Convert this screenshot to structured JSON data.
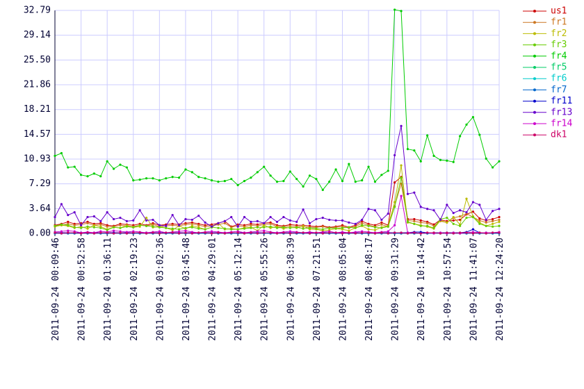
{
  "chart_data": {
    "type": "line",
    "grid": true,
    "legend": "right",
    "categories": [
      "2011-09-24 00:09:46",
      null,
      null,
      null,
      "2011-09-24 00:52:58",
      null,
      null,
      null,
      "2011-09-24 01:36:11",
      null,
      null,
      null,
      "2011-09-24 02:19:23",
      null,
      null,
      null,
      "2011-09-24 03:02:36",
      null,
      null,
      null,
      "2011-09-24 03:45:48",
      null,
      null,
      null,
      "2011-09-24 04:29:01",
      null,
      null,
      null,
      "2011-09-24 05:12:14",
      null,
      null,
      null,
      "2011-09-24 05:55:26",
      null,
      null,
      null,
      "2011-09-24 06:38:39",
      null,
      null,
      null,
      "2011-09-24 07:21:51",
      null,
      null,
      null,
      "2011-09-24 08:05:04",
      null,
      null,
      null,
      "2011-09-24 08:48:17",
      null,
      null,
      null,
      "2011-09-24 09:31:29",
      null,
      null,
      null,
      "2011-09-24 10:14:42",
      null,
      null,
      null,
      "2011-09-24 10:57:54",
      null,
      null,
      null,
      "2011-09-24 11:41:07",
      null,
      null,
      null,
      "2011-09-24 12:24:20"
    ],
    "ylim": [
      0,
      32.79
    ],
    "yticks": [
      {
        "value": 0,
        "label": "0.00"
      },
      3.64,
      7.29,
      10.93,
      14.57,
      18.21,
      21.86,
      {
        "value": 25.5,
        "label": "25.50"
      },
      29.14,
      32.79
    ],
    "series": [
      {
        "name": "us1",
        "color": "#cc0000",
        "values": [
          1.2,
          1.4,
          1.7,
          1.4,
          1.5,
          1.7,
          1.4,
          1.5,
          1.2,
          1.1,
          1.4,
          1.3,
          1.2,
          1.4,
          1.2,
          1.5,
          1.2,
          1.3,
          1.4,
          1.3,
          1.5,
          1.6,
          1.4,
          1.2,
          1.3,
          1.5,
          1.8,
          1.0,
          1.3,
          1.2,
          1.4,
          1.3,
          1.5,
          1.6,
          1.2,
          1.1,
          1.3,
          1.2,
          1.2,
          1.1,
          1.0,
          1.1,
          0.9,
          1.0,
          1.2,
          0.9,
          1.2,
          1.8,
          1.4,
          1.2,
          1.6,
          1.2,
          7.5,
          8.3,
          2.1,
          2.1,
          1.9,
          1.7,
          1.3,
          2.0,
          1.8,
          1.9,
          2.0,
          2.8,
          3.2,
          2.2,
          1.9,
          2.1,
          2.4
        ]
      },
      {
        "name": "fr1",
        "color": "#cc7722",
        "values": [
          1.1,
          1.2,
          1.4,
          1.2,
          1.3,
          1.5,
          1.2,
          1.3,
          1.0,
          1.0,
          1.2,
          1.1,
          1.0,
          1.2,
          1.1,
          1.3,
          1.0,
          1.1,
          1.2,
          1.1,
          1.3,
          1.4,
          1.2,
          1.0,
          1.1,
          1.3,
          1.5,
          0.9,
          1.1,
          1.0,
          1.2,
          1.1,
          1.3,
          1.4,
          1.0,
          1.0,
          1.1,
          1.0,
          1.0,
          0.9,
          0.9,
          1.0,
          0.8,
          0.9,
          1.0,
          0.8,
          1.0,
          1.5,
          1.2,
          1.0,
          1.3,
          1.0,
          4.0,
          7.3,
          1.9,
          1.8,
          1.6,
          1.5,
          1.1,
          1.8,
          1.6,
          2.3,
          2.5,
          2.9,
          2.4,
          1.9,
          1.6,
          1.8,
          2.0
        ]
      },
      {
        "name": "fr2",
        "color": "#bbbb00",
        "values": [
          1.0,
          1.2,
          1.1,
          0.8,
          1.0,
          0.7,
          1.2,
          1.0,
          0.6,
          0.9,
          0.8,
          1.2,
          0.9,
          1.0,
          2.3,
          0.9,
          1.0,
          0.8,
          0.5,
          1.1,
          0.7,
          1.1,
          0.9,
          0.6,
          0.9,
          1.5,
          0.6,
          0.7,
          0.6,
          0.8,
          0.9,
          0.4,
          1.2,
          0.8,
          1.0,
          0.7,
          0.9,
          0.8,
          1.1,
          0.6,
          0.6,
          0.4,
          0.5,
          0.7,
          0.6,
          0.4,
          0.8,
          1.1,
          0.6,
          0.5,
          0.9,
          1.1,
          4.6,
          10.0,
          1.6,
          1.4,
          1.2,
          1.0,
          0.7,
          1.9,
          1.6,
          2.4,
          1.3,
          5.1,
          2.5,
          1.6,
          1.1,
          1.4,
          1.7
        ]
      },
      {
        "name": "fr3",
        "color": "#66cc00",
        "values": [
          1.1,
          1.3,
          1.2,
          0.9,
          0.8,
          1.0,
          0.9,
          0.8,
          0.5,
          0.9,
          0.8,
          1.0,
          0.9,
          1.2,
          1.1,
          1.0,
          0.9,
          0.8,
          0.7,
          0.6,
          0.8,
          0.9,
          0.7,
          0.6,
          0.9,
          0.8,
          0.7,
          0.6,
          0.6,
          0.7,
          0.8,
          0.9,
          0.9,
          1.0,
          0.8,
          0.9,
          0.8,
          0.9,
          0.7,
          0.8,
          0.7,
          0.6,
          0.8,
          0.7,
          0.8,
          0.9,
          0.8,
          1.2,
          1.1,
          0.9,
          0.8,
          1.0,
          3.9,
          8.2,
          1.7,
          1.4,
          1.1,
          1.1,
          0.8,
          2.1,
          2.3,
          1.4,
          1.1,
          2.3,
          2.4,
          1.4,
          1.1,
          1.0,
          1.1
        ]
      },
      {
        "name": "fr4",
        "color": "#00cc00",
        "values": [
          11.4,
          11.8,
          9.7,
          9.8,
          8.6,
          8.4,
          8.8,
          8.4,
          10.6,
          9.5,
          10.1,
          9.7,
          7.8,
          7.9,
          8.1,
          8.1,
          7.8,
          8.1,
          8.3,
          8.2,
          9.4,
          9.0,
          8.3,
          8.1,
          7.8,
          7.6,
          7.7,
          8.0,
          7.1,
          7.7,
          8.2,
          9.0,
          9.8,
          8.5,
          7.6,
          7.7,
          9.1,
          8.0,
          6.9,
          8.5,
          8.0,
          6.4,
          7.6,
          9.4,
          7.7,
          10.2,
          7.6,
          7.8,
          9.8,
          7.6,
          8.6,
          9.2,
          32.9,
          32.7,
          12.4,
          12.2,
          10.6,
          14.4,
          11.4,
          10.8,
          10.7,
          10.5,
          14.3,
          16.0,
          17.1,
          14.5,
          11.0,
          9.7,
          10.6
        ]
      },
      {
        "name": "fr5",
        "color": "#00cc66",
        "values": [
          0.0,
          0.1,
          0.0,
          0.0,
          0.1,
          0.0,
          0.0,
          0.0,
          0.1,
          0.0,
          0.0,
          0.1,
          0.0,
          0.0,
          0.1,
          0.0,
          0.0,
          0.0,
          0.1,
          0.0,
          0.0,
          0.1,
          0.0,
          0.0,
          0.1,
          0.0,
          0.0,
          0.0,
          0.1,
          0.0,
          0.0,
          0.1,
          0.0,
          0.0,
          0.1,
          0.0,
          0.0,
          0.0,
          0.1,
          0.0,
          0.0,
          0.1,
          0.0,
          0.0,
          0.1,
          0.0,
          0.0,
          0.0,
          0.1,
          0.0,
          0.0,
          0.1,
          0.0,
          0.0,
          0.1,
          0.0,
          0.0,
          0.0,
          0.1,
          0.0,
          0.0,
          0.1,
          0.0,
          0.0,
          0.1,
          0.0,
          0.0,
          0.0,
          0.1
        ]
      },
      {
        "name": "fr6",
        "color": "#00cccc",
        "values": [
          0.0,
          0.0,
          0.1,
          0.0,
          0.0,
          0.0,
          0.1,
          0.0,
          0.0,
          0.0,
          0.0,
          0.0,
          0.1,
          0.0,
          0.0,
          0.0,
          0.1,
          0.0,
          0.0,
          0.0,
          0.0,
          0.0,
          0.1,
          0.0,
          0.0,
          0.0,
          0.1,
          0.0,
          0.0,
          0.0,
          0.0,
          0.0,
          0.1,
          0.0,
          0.0,
          0.0,
          0.1,
          0.0,
          0.0,
          0.0,
          0.0,
          0.0,
          0.1,
          0.0,
          0.0,
          0.0,
          0.1,
          0.0,
          0.0,
          0.0,
          0.0,
          0.0,
          0.1,
          0.0,
          0.0,
          0.0,
          0.1,
          0.0,
          0.0,
          0.0,
          0.0,
          0.0,
          0.1,
          0.0,
          0.0,
          0.0,
          0.1,
          0.0,
          0.0
        ]
      },
      {
        "name": "fr7",
        "color": "#0066cc",
        "values": [
          0.0,
          0.0,
          0.0,
          0.0,
          0.0,
          0.0,
          0.0,
          0.0,
          0.0,
          0.0,
          0.0,
          0.0,
          0.0,
          0.0,
          0.0,
          0.0,
          0.0,
          0.0,
          0.0,
          0.0,
          0.0,
          0.0,
          0.0,
          0.0,
          0.0,
          0.0,
          0.0,
          0.0,
          0.0,
          0.0,
          0.0,
          0.0,
          0.0,
          0.0,
          0.0,
          0.0,
          0.0,
          0.0,
          0.0,
          0.0,
          0.0,
          0.0,
          0.0,
          0.0,
          0.0,
          0.0,
          0.0,
          0.0,
          0.0,
          0.0,
          0.0,
          0.0,
          0.0,
          0.0,
          0.0,
          0.0,
          0.0,
          0.0,
          0.0,
          0.0,
          0.0,
          0.0,
          0.0,
          0.0,
          0.0,
          0.0,
          0.0,
          0.0,
          0.0
        ]
      },
      {
        "name": "fr11",
        "color": "#0000cc",
        "values": [
          0.1,
          0.1,
          0.1,
          0.1,
          0.1,
          0.1,
          0.1,
          0.1,
          0.1,
          0.1,
          0.1,
          0.1,
          0.1,
          0.1,
          0.1,
          0.1,
          0.1,
          0.1,
          0.1,
          0.1,
          0.1,
          0.1,
          0.1,
          0.1,
          0.1,
          0.1,
          0.1,
          0.1,
          0.1,
          0.1,
          0.1,
          0.1,
          0.1,
          0.1,
          0.1,
          0.1,
          0.1,
          0.1,
          0.1,
          0.1,
          0.1,
          0.1,
          0.1,
          0.1,
          0.1,
          0.1,
          0.1,
          0.1,
          0.1,
          0.1,
          0.1,
          0.1,
          0.1,
          0.1,
          0.1,
          0.2,
          0.2,
          0.1,
          0.1,
          0.1,
          0.1,
          0.1,
          0.1,
          0.2,
          0.6,
          0.1,
          0.1,
          0.1,
          0.1
        ]
      },
      {
        "name": "fr13",
        "color": "#6600cc",
        "values": [
          2.4,
          4.3,
          2.7,
          3.1,
          1.2,
          2.4,
          2.5,
          1.8,
          3.1,
          2.1,
          2.3,
          1.8,
          1.9,
          3.4,
          1.9,
          2.0,
          1.2,
          1.1,
          2.7,
          1.2,
          2.1,
          2.0,
          2.6,
          1.6,
          1.0,
          1.5,
          1.8,
          2.4,
          1.0,
          2.4,
          1.7,
          1.8,
          1.5,
          2.4,
          1.7,
          2.4,
          1.9,
          1.7,
          3.5,
          1.5,
          2.1,
          2.3,
          2.0,
          1.9,
          1.9,
          1.6,
          1.4,
          2.0,
          3.6,
          3.4,
          2.0,
          2.9,
          11.5,
          15.8,
          5.8,
          6.0,
          3.9,
          3.6,
          3.4,
          2.0,
          4.2,
          3.0,
          3.4,
          3.1,
          4.6,
          4.2,
          2.0,
          3.3,
          3.6
        ]
      },
      {
        "name": "fr14",
        "color": "#cc00cc",
        "values": [
          0.2,
          0.3,
          0.4,
          0.3,
          0.1,
          0.2,
          0.1,
          0.3,
          0.2,
          0.4,
          0.3,
          0.2,
          0.3,
          0.2,
          0.1,
          0.2,
          0.3,
          0.1,
          0.2,
          0.3,
          0.4,
          0.2,
          0.1,
          0.2,
          0.3,
          0.2,
          0.1,
          0.2,
          0.3,
          0.1,
          0.2,
          0.3,
          0.4,
          0.2,
          0.1,
          0.2,
          0.3,
          0.2,
          0.1,
          0.2,
          0.1,
          0.2,
          0.3,
          0.1,
          0.2,
          0.1,
          0.2,
          0.3,
          0.2,
          0.1,
          0.2,
          0.3,
          1.2,
          5.5,
          0.1,
          0.1,
          0.0,
          0.1,
          0.0,
          0.1,
          0.0,
          0.1,
          0.0,
          0.1,
          0.2,
          0.1,
          0.1,
          0.1,
          0.2
        ]
      },
      {
        "name": "dk1",
        "color": "#cc0066",
        "values": [
          0.1,
          0.0,
          0.1,
          0.1,
          0.0,
          0.1,
          0.0,
          0.1,
          0.1,
          0.0,
          0.1,
          0.0,
          0.1,
          0.1,
          0.0,
          0.1,
          0.0,
          0.1,
          0.1,
          0.0,
          0.1,
          0.0,
          0.1,
          0.1,
          0.0,
          0.1,
          0.0,
          0.1,
          0.1,
          0.0,
          0.1,
          0.0,
          0.1,
          0.1,
          0.0,
          0.1,
          0.0,
          0.1,
          0.1,
          0.0,
          0.1,
          0.0,
          0.1,
          0.1,
          0.0,
          0.1,
          0.0,
          0.1,
          0.1,
          0.0,
          0.1,
          0.0,
          0.1,
          0.1,
          0.0,
          0.1,
          0.0,
          0.1,
          0.1,
          0.0,
          0.1,
          0.0,
          0.1,
          0.1,
          0.0,
          0.1,
          0.0,
          0.1,
          0.1
        ]
      }
    ]
  }
}
